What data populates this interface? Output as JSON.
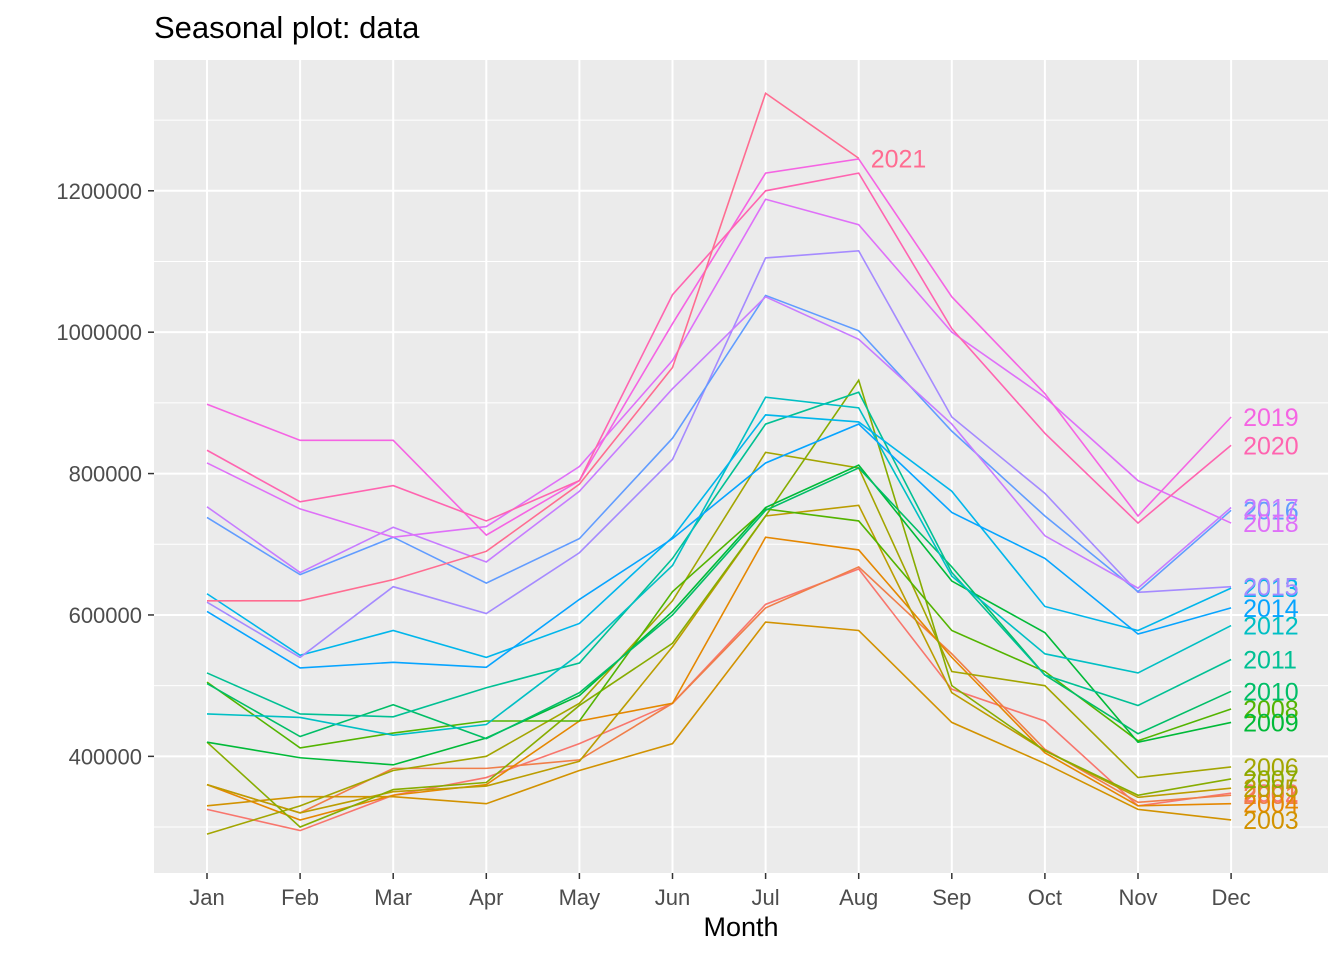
{
  "chart_data": {
    "type": "line",
    "title": "Seasonal plot: data",
    "xlabel": "Month",
    "ylabel": "",
    "categories": [
      "Jan",
      "Feb",
      "Mar",
      "Apr",
      "May",
      "Jun",
      "Jul",
      "Aug",
      "Sep",
      "Oct",
      "Nov",
      "Dec"
    ],
    "ylim": [
      235000,
      1385000
    ],
    "yticks": [
      400000,
      600000,
      800000,
      1000000,
      1200000
    ],
    "ytick_labels": [
      "400000",
      "600000",
      "800000",
      "1000000",
      "1200000"
    ],
    "background": "#ebebeb",
    "grid": true,
    "series": [
      {
        "name": "2002",
        "color": "#f8766d",
        "values": [
          325000,
          295000,
          345000,
          370000,
          418000,
          475000,
          615000,
          665000,
          495000,
          450000,
          330000,
          348000
        ]
      },
      {
        "name": "2001",
        "color": "#f07e49",
        "values": [
          360000,
          320000,
          383000,
          383000,
          395000,
          475000,
          610000,
          668000,
          545000,
          410000,
          335000,
          345000
        ]
      },
      {
        "name": "2004",
        "color": "#e58700",
        "values": [
          360000,
          310000,
          345000,
          360000,
          450000,
          475000,
          710000,
          692000,
          540000,
          405000,
          330000,
          333000
        ]
      },
      {
        "name": "2003",
        "color": "#d29200",
        "values": [
          330000,
          343000,
          343000,
          333000,
          380000,
          418000,
          590000,
          578000,
          448000,
          390000,
          325000,
          310000
        ]
      },
      {
        "name": "2005",
        "color": "#bb9d00",
        "values": [
          360000,
          320000,
          350000,
          358000,
          393000,
          555000,
          740000,
          755000,
          490000,
          408000,
          342000,
          355000
        ]
      },
      {
        "name": "2006",
        "color": "#a3a500",
        "values": [
          290000,
          330000,
          380000,
          400000,
          475000,
          620000,
          830000,
          808000,
          520000,
          500000,
          370000,
          385000
        ]
      },
      {
        "name": "2007",
        "color": "#87ac00",
        "values": [
          420000,
          300000,
          353000,
          363000,
          472000,
          560000,
          740000,
          932000,
          500000,
          408000,
          345000,
          368000
        ]
      },
      {
        "name": "2008",
        "color": "#53b400",
        "values": [
          505000,
          412000,
          433000,
          450000,
          450000,
          633000,
          750000,
          733000,
          578000,
          520000,
          422000,
          467000
        ]
      },
      {
        "name": "2009",
        "color": "#00ba38",
        "values": [
          420000,
          398000,
          388000,
          426000,
          486000,
          605000,
          752000,
          812000,
          648000,
          575000,
          420000,
          448000
        ]
      },
      {
        "name": "2010",
        "color": "#00be67",
        "values": [
          503000,
          428000,
          473000,
          425000,
          490000,
          600000,
          748000,
          808000,
          668000,
          515000,
          432000,
          492000
        ]
      },
      {
        "name": "2011",
        "color": "#00c094",
        "values": [
          518000,
          460000,
          456000,
          497000,
          532000,
          680000,
          870000,
          915000,
          660000,
          515000,
          472000,
          537000
        ]
      },
      {
        "name": "2012",
        "color": "#00bfc4",
        "values": [
          460000,
          455000,
          430000,
          445000,
          545000,
          670000,
          908000,
          893000,
          655000,
          545000,
          518000,
          585000
        ]
      },
      {
        "name": "2013",
        "color": "#00b6eb",
        "values": [
          630000,
          543000,
          578000,
          540000,
          588000,
          710000,
          883000,
          873000,
          775000,
          612000,
          578000,
          638000
        ]
      },
      {
        "name": "2014",
        "color": "#06a4ff",
        "values": [
          605000,
          525000,
          533000,
          526000,
          622000,
          708000,
          815000,
          870000,
          745000,
          680000,
          573000,
          610000
        ]
      },
      {
        "name": "2015",
        "color": "#a58aff",
        "values": [
          618000,
          540000,
          640000,
          602000,
          688000,
          820000,
          1105000,
          1115000,
          880000,
          772000,
          632000,
          640000
        ]
      },
      {
        "name": "2016",
        "color": "#619cff",
        "values": [
          738000,
          657000,
          710000,
          645000,
          708000,
          850000,
          1052000,
          1002000,
          860000,
          740000,
          633000,
          748000
        ]
      },
      {
        "name": "2017",
        "color": "#c77cff",
        "values": [
          753000,
          660000,
          724000,
          675000,
          775000,
          920000,
          1050000,
          990000,
          870000,
          712000,
          638000,
          752000
        ]
      },
      {
        "name": "2018",
        "color": "#df70f8",
        "values": [
          815000,
          750000,
          710000,
          725000,
          810000,
          960000,
          1188000,
          1152000,
          1000000,
          908000,
          790000,
          730000
        ]
      },
      {
        "name": "2019",
        "color": "#f564e3",
        "values": [
          898000,
          847000,
          847000,
          713000,
          790000,
          1012000,
          1225000,
          1245000,
          1050000,
          913000,
          740000,
          880000
        ]
      },
      {
        "name": "2020",
        "color": "#ff64b0",
        "values": [
          833000,
          760000,
          783000,
          733000,
          790000,
          1053000,
          1200000,
          1225000,
          1005000,
          857000,
          730000,
          840000
        ]
      },
      {
        "name": "2021",
        "color": "#ff6c91",
        "values": [
          620000,
          620000,
          650000,
          690000,
          785000,
          950000,
          1338000,
          1246000,
          null,
          null,
          null,
          null
        ]
      }
    ]
  }
}
